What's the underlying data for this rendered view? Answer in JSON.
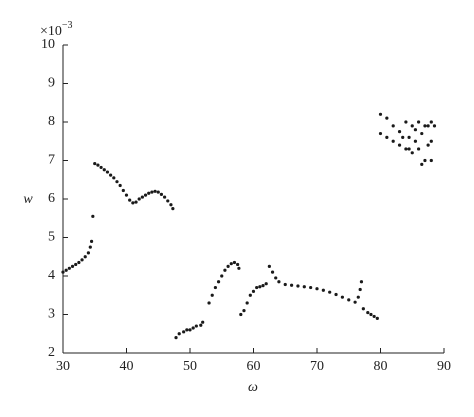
{
  "chart_data": {
    "type": "scatter",
    "xlabel": "ω",
    "ylabel": "w",
    "y_multiplier": {
      "base": "×10",
      "exponent": "−3"
    },
    "color": "#1a1a1a",
    "xlim": [
      30,
      90
    ],
    "xticks": [
      30,
      40,
      50,
      60,
      70,
      80,
      90
    ],
    "ylim": [
      2,
      10
    ],
    "yticks": [
      2,
      3,
      4,
      5,
      6,
      7,
      8,
      9,
      10
    ],
    "x": [
      30,
      30.5,
      31,
      31.5,
      32,
      32.5,
      33,
      33.5,
      34,
      34.3,
      34.5,
      34.7,
      35,
      35.5,
      36,
      36.5,
      37,
      37.5,
      38,
      38.5,
      39,
      39.5,
      40,
      40.5,
      41,
      41.5,
      42,
      42.5,
      43,
      43.5,
      44,
      44.5,
      45,
      45.5,
      46,
      46.5,
      47,
      47.3,
      47.8,
      48.3,
      49,
      49.5,
      50,
      50.5,
      51,
      51.7,
      52,
      53,
      53.5,
      54,
      54.5,
      55,
      55.5,
      56,
      56.5,
      57,
      57.5,
      57.7,
      58,
      58.5,
      59,
      59.5,
      60,
      60.5,
      61,
      61.5,
      62,
      62.5,
      63,
      63.5,
      64,
      65,
      66,
      67,
      68,
      69,
      70,
      71,
      72,
      73,
      74,
      75,
      76,
      76.5,
      76.8,
      77,
      77.3,
      78,
      78.5,
      79,
      79.5,
      80,
      81,
      82,
      83,
      80,
      81,
      82,
      83,
      84,
      84,
      84.5,
      85,
      85,
      85.5,
      86,
      86,
      86.5,
      87,
      87,
      87.5,
      88,
      88,
      88,
      86.5,
      85.5,
      84.5,
      83.5,
      87.5,
      88.5
    ],
    "y": [
      4.1,
      4.15,
      4.2,
      4.25,
      4.3,
      4.35,
      4.42,
      4.5,
      4.6,
      4.75,
      4.9,
      5.55,
      6.92,
      6.88,
      6.82,
      6.76,
      6.7,
      6.62,
      6.55,
      6.45,
      6.35,
      6.22,
      6.1,
      5.97,
      5.9,
      5.92,
      6.0,
      6.05,
      6.1,
      6.15,
      6.18,
      6.2,
      6.18,
      6.12,
      6.05,
      5.95,
      5.85,
      5.75,
      2.4,
      2.5,
      2.55,
      2.6,
      2.6,
      2.65,
      2.7,
      2.72,
      2.8,
      3.3,
      3.5,
      3.7,
      3.85,
      4.0,
      4.15,
      4.25,
      4.32,
      4.35,
      4.3,
      4.2,
      3.0,
      3.1,
      3.3,
      3.5,
      3.6,
      3.7,
      3.72,
      3.75,
      3.8,
      4.25,
      4.1,
      3.95,
      3.85,
      3.78,
      3.76,
      3.74,
      3.72,
      3.7,
      3.67,
      3.63,
      3.58,
      3.52,
      3.45,
      3.38,
      3.32,
      3.45,
      3.65,
      3.85,
      3.15,
      3.05,
      3.0,
      2.95,
      2.9,
      8.2,
      8.1,
      7.9,
      7.75,
      7.7,
      7.6,
      7.5,
      7.4,
      7.3,
      8.0,
      7.6,
      7.9,
      7.2,
      7.5,
      8.0,
      7.3,
      7.7,
      7.0,
      7.9,
      7.4,
      8.0,
      7.0,
      7.5,
      6.9,
      7.8,
      7.3,
      7.6,
      7.9,
      7.9
    ]
  }
}
